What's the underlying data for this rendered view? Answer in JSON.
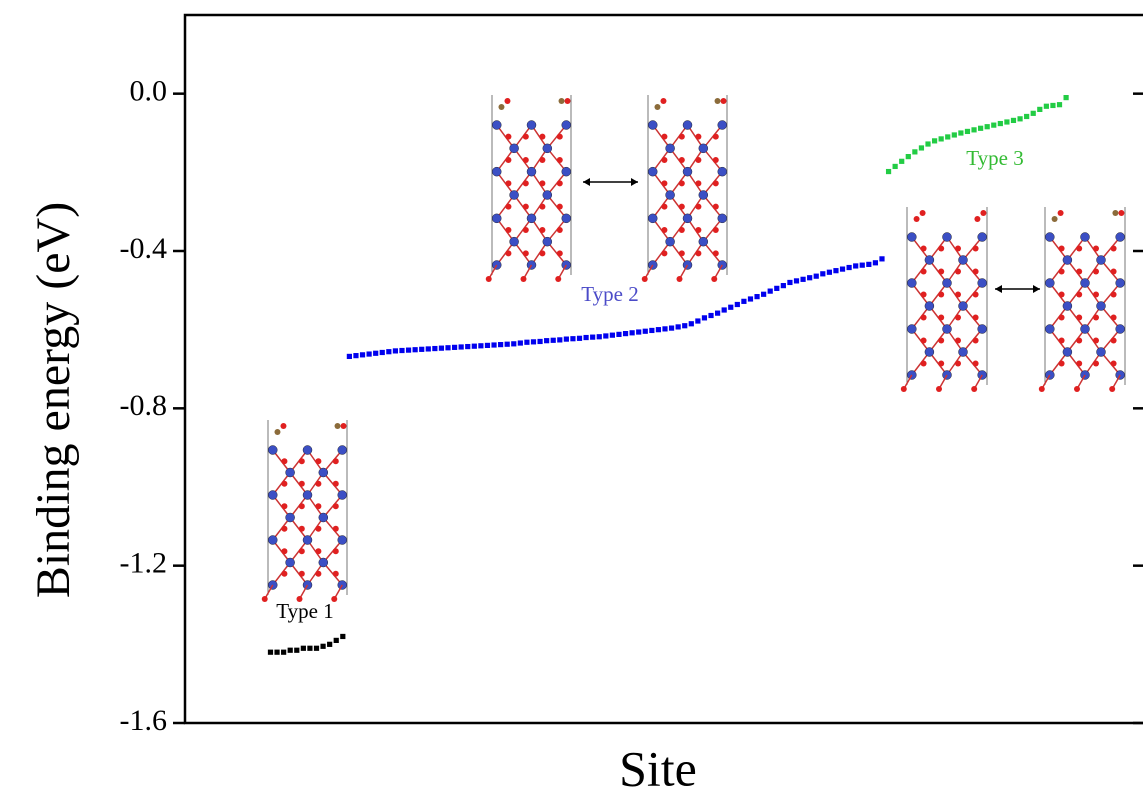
{
  "chart_data": {
    "type": "scatter",
    "x_label": "Site",
    "y_label": "Binding energy (eV)",
    "xlim": [
      -12,
      134
    ],
    "ylim": [
      -1.6,
      0.2
    ],
    "yticks": [
      {
        "value": 0,
        "label": "0.0"
      },
      -0.4,
      -0.8,
      -1.2,
      -1.6
    ],
    "series": [
      {
        "name": "Type 1",
        "color": "#000000",
        "x": [
          1,
          2,
          3,
          4,
          5,
          6,
          7,
          8,
          9,
          10,
          11,
          12
        ],
        "values": [
          -1.42,
          -1.42,
          -1.42,
          -1.415,
          -1.415,
          -1.41,
          -1.41,
          -1.41,
          -1.405,
          -1.4,
          -1.39,
          -1.38
        ]
      },
      {
        "name": "Type 2",
        "color": "#0000ee",
        "x": [
          13,
          14,
          15,
          16,
          17,
          18,
          19,
          20,
          21,
          22,
          23,
          24,
          25,
          26,
          27,
          28,
          29,
          30,
          31,
          32,
          33,
          34,
          35,
          36,
          37,
          38,
          39,
          40,
          41,
          42,
          43,
          44,
          45,
          46,
          47,
          48,
          49,
          50,
          51,
          52,
          53,
          54,
          55,
          56,
          57,
          58,
          59,
          60,
          61,
          62,
          63,
          64,
          65,
          66,
          67,
          68,
          69,
          70,
          71,
          72,
          73,
          74,
          75,
          76,
          77,
          78,
          79,
          80,
          81,
          82,
          83,
          84,
          85,
          86,
          87,
          88,
          89,
          90,
          91,
          92,
          93,
          94
        ],
        "values": [
          -0.668,
          -0.666,
          -0.664,
          -0.662,
          -0.66,
          -0.658,
          -0.656,
          -0.654,
          -0.653,
          -0.652,
          -0.651,
          -0.65,
          -0.649,
          -0.648,
          -0.647,
          -0.646,
          -0.645,
          -0.644,
          -0.643,
          -0.642,
          -0.641,
          -0.64,
          -0.639,
          -0.638,
          -0.637,
          -0.636,
          -0.634,
          -0.632,
          -0.631,
          -0.63,
          -0.628,
          -0.627,
          -0.626,
          -0.624,
          -0.623,
          -0.622,
          -0.62,
          -0.619,
          -0.618,
          -0.616,
          -0.614,
          -0.612,
          -0.61,
          -0.608,
          -0.606,
          -0.604,
          -0.602,
          -0.6,
          -0.598,
          -0.596,
          -0.593,
          -0.59,
          -0.585,
          -0.578,
          -0.57,
          -0.564,
          -0.558,
          -0.55,
          -0.543,
          -0.536,
          -0.528,
          -0.522,
          -0.516,
          -0.51,
          -0.502,
          -0.495,
          -0.488,
          -0.48,
          -0.476,
          -0.472,
          -0.468,
          -0.464,
          -0.458,
          -0.454,
          -0.45,
          -0.446,
          -0.442,
          -0.438,
          -0.436,
          -0.434,
          -0.43,
          -0.42
        ]
      },
      {
        "name": "Type 3",
        "color": "#22cc44",
        "x": [
          95,
          96,
          97,
          98,
          99,
          100,
          101,
          102,
          103,
          104,
          105,
          106,
          107,
          108,
          109,
          110,
          111,
          112,
          113,
          114,
          115,
          116,
          117,
          118,
          119,
          120,
          121,
          122
        ],
        "values": [
          -0.198,
          -0.185,
          -0.172,
          -0.16,
          -0.148,
          -0.138,
          -0.128,
          -0.12,
          -0.115,
          -0.11,
          -0.105,
          -0.1,
          -0.096,
          -0.092,
          -0.088,
          -0.084,
          -0.08,
          -0.076,
          -0.072,
          -0.068,
          -0.064,
          -0.058,
          -0.05,
          -0.04,
          -0.032,
          -0.03,
          -0.028,
          -0.01
        ]
      }
    ]
  }
}
